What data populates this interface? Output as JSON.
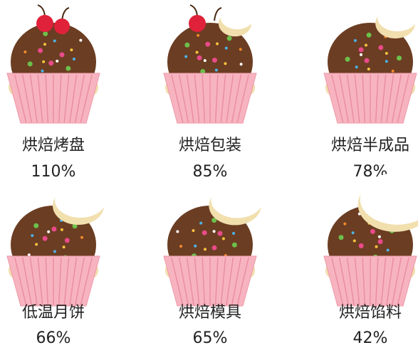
{
  "chart_data": {
    "type": "pictorial",
    "categories": [
      "烘焙烤盘",
      "烘焙包装",
      "烘焙半成品",
      "低温月饼",
      "烘焙模具",
      "烘焙馅料"
    ],
    "values": [
      110,
      85,
      78,
      66,
      65,
      42
    ],
    "value_labels": [
      "110%",
      "85%",
      "78%",
      "66%",
      "65%",
      "42%"
    ]
  }
}
